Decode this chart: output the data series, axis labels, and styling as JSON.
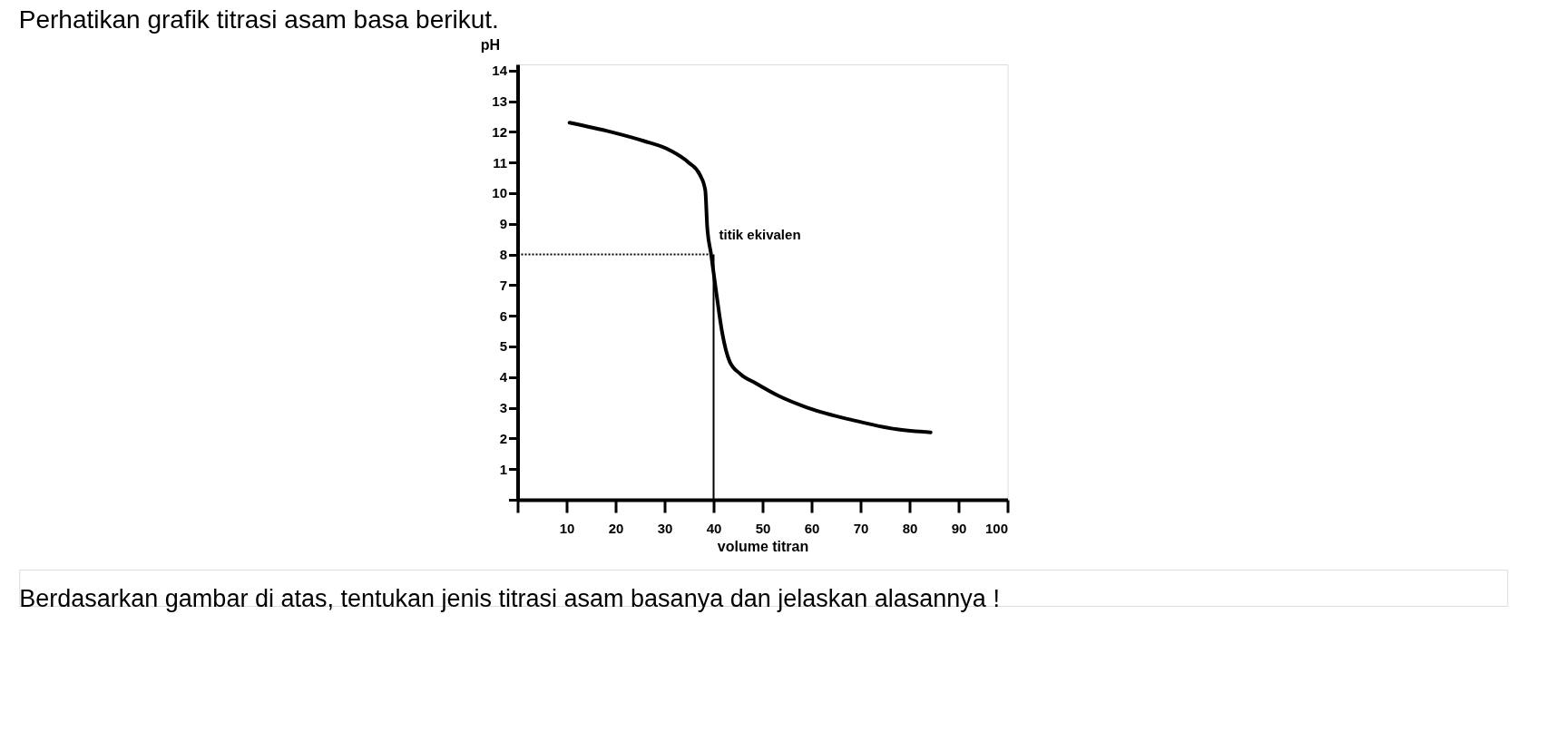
{
  "chart_data": {
    "type": "line",
    "title": "Perhatikan grafik titrasi asam basa berikut.",
    "xlabel": "volume titran",
    "ylabel": "pH",
    "x": [
      10.6,
      19.0,
      25.8,
      31.1,
      34.9,
      37.2,
      38.3,
      38.7,
      39.5,
      40.6,
      41.7,
      43.3,
      45.5,
      48.6,
      53.1,
      59.2,
      68.3,
      77.4,
      84.3
    ],
    "series": [
      {
        "color": "#000000",
        "values": [
          12.3,
          12.0,
          11.7,
          11.4,
          11.0,
          10.6,
          10.1,
          8.9,
          8.0,
          6.7,
          5.5,
          4.5,
          4.1,
          3.8,
          3.4,
          3.0,
          2.6,
          2.3,
          2.2
        ]
      }
    ],
    "xlim": [
      0,
      100
    ],
    "ylim": [
      0,
      14.2
    ],
    "xticks": [
      {
        "value": 0,
        "label": null
      },
      10,
      20,
      30,
      40,
      50,
      60,
      70,
      80,
      90,
      100
    ],
    "yticks": [
      {
        "value": 0,
        "label": null
      },
      1,
      2,
      3,
      4,
      5,
      6,
      7,
      8,
      9,
      10,
      11,
      12,
      13,
      14
    ],
    "ref_lines": [
      {
        "axis": "y",
        "value": 8,
        "line_style": "dotted",
        "color": "#000000"
      },
      {
        "axis": "x",
        "value": 40,
        "line_style": "solid",
        "color": "#000000"
      }
    ],
    "annotations": [
      {
        "text": "titik ekivalen",
        "x": 40,
        "y": 8
      },
      "Berdasarkan gambar di atas, tentukan jenis titrasi asam basanya dan jelaskan alasannya !"
    ],
    "grid": false,
    "line_style": "solid",
    "marker": "none"
  }
}
